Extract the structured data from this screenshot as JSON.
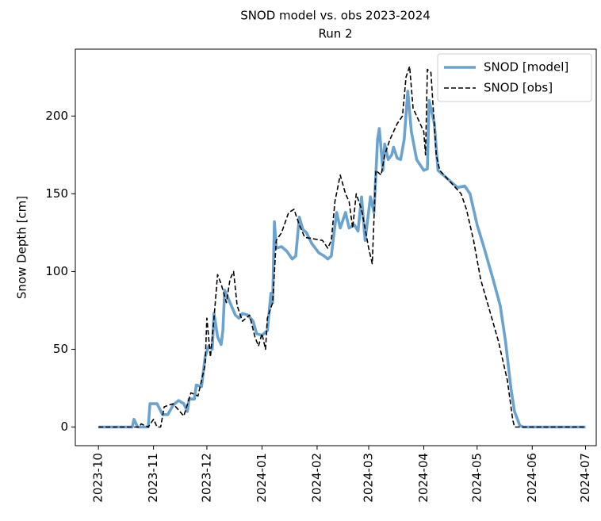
{
  "chart_data": {
    "type": "line",
    "title": "SNOD model vs. obs 2023-2024",
    "subtitle": "Run 2",
    "ylabel": "Snow Depth [cm]",
    "xlim": [
      "2023-09-18",
      "2024-07-07"
    ],
    "xticks": [
      "2023-10",
      "2023-11",
      "2023-12",
      "2024-01",
      "2024-02",
      "2024-03",
      "2024-04",
      "2024-05",
      "2024-06",
      "2024-07"
    ],
    "ylim": [
      -12,
      243
    ],
    "yticks": [
      0,
      50,
      100,
      150,
      200
    ],
    "grid": false,
    "legend": "upper right",
    "series": [
      {
        "name": "SNOD [model]",
        "color": "#6aa3d0",
        "dashed": false,
        "x": [
          "2023-10-01",
          "2023-10-20",
          "2023-10-21",
          "2023-10-23",
          "2023-10-29",
          "2023-10-30",
          "2023-11-03",
          "2023-11-06",
          "2023-11-09",
          "2023-11-12",
          "2023-11-15",
          "2023-11-18",
          "2023-11-20",
          "2023-11-21",
          "2023-11-24",
          "2023-11-25",
          "2023-11-28",
          "2023-11-30",
          "2023-12-02",
          "2023-12-04",
          "2023-12-05",
          "2023-12-07",
          "2023-12-09",
          "2023-12-10",
          "2023-12-11",
          "2023-12-14",
          "2023-12-17",
          "2023-12-19",
          "2023-12-21",
          "2023-12-24",
          "2023-12-27",
          "2023-12-29",
          "2024-01-01",
          "2024-01-04",
          "2024-01-06",
          "2024-01-07",
          "2024-01-08",
          "2024-01-09",
          "2024-01-12",
          "2024-01-15",
          "2024-01-18",
          "2024-01-20",
          "2024-01-22",
          "2024-01-24",
          "2024-01-26",
          "2024-01-29",
          "2024-02-02",
          "2024-02-05",
          "2024-02-07",
          "2024-02-09",
          "2024-02-10",
          "2024-02-12",
          "2024-02-14",
          "2024-02-17",
          "2024-02-19",
          "2024-02-22",
          "2024-02-24",
          "2024-02-26",
          "2024-02-28",
          "2024-03-02",
          "2024-03-04",
          "2024-03-06",
          "2024-03-07",
          "2024-03-09",
          "2024-03-10",
          "2024-03-12",
          "2024-03-14",
          "2024-03-15",
          "2024-03-17",
          "2024-03-19",
          "2024-03-21",
          "2024-03-23",
          "2024-03-25",
          "2024-03-28",
          "2024-04-01",
          "2024-04-03",
          "2024-04-04",
          "2024-04-07",
          "2024-04-09",
          "2024-04-12",
          "2024-04-16",
          "2024-04-20",
          "2024-04-24",
          "2024-04-27",
          "2024-05-01",
          "2024-05-05",
          "2024-05-10",
          "2024-05-14",
          "2024-05-17",
          "2024-05-20",
          "2024-05-22",
          "2024-05-25",
          "2024-05-27",
          "2024-07-01"
        ],
        "values": [
          0,
          0,
          5,
          0,
          0,
          15,
          15,
          8,
          8,
          14,
          17,
          15,
          10,
          18,
          18,
          27,
          26,
          45,
          52,
          50,
          73,
          58,
          53,
          62,
          88,
          80,
          72,
          70,
          73,
          72,
          68,
          60,
          59,
          62,
          86,
          80,
          132,
          115,
          116,
          113,
          108,
          110,
          135,
          127,
          125,
          118,
          112,
          110,
          108,
          110,
          120,
          138,
          128,
          138,
          128,
          130,
          126,
          148,
          120,
          148,
          138,
          185,
          192,
          165,
          182,
          172,
          175,
          180,
          173,
          172,
          185,
          216,
          190,
          172,
          165,
          166,
          210,
          195,
          165,
          162,
          158,
          154,
          155,
          150,
          130,
          115,
          95,
          78,
          55,
          25,
          10,
          1,
          0,
          0
        ]
      },
      {
        "name": "SNOD [obs]",
        "color": "#000000",
        "dashed": true,
        "x": [
          "2023-10-01",
          "2023-10-24",
          "2023-10-25",
          "2023-10-29",
          "2023-11-01",
          "2023-11-03",
          "2023-11-05",
          "2023-11-07",
          "2023-11-12",
          "2023-11-15",
          "2023-11-18",
          "2023-11-22",
          "2023-11-26",
          "2023-11-30",
          "2023-12-01",
          "2023-12-03",
          "2023-12-05",
          "2023-12-07",
          "2023-12-09",
          "2023-12-12",
          "2023-12-14",
          "2023-12-16",
          "2023-12-18",
          "2023-12-21",
          "2023-12-25",
          "2023-12-28",
          "2023-12-30",
          "2024-01-01",
          "2024-01-03",
          "2024-01-04",
          "2024-01-07",
          "2024-01-09",
          "2024-01-12",
          "2024-01-16",
          "2024-01-19",
          "2024-01-22",
          "2024-01-25",
          "2024-01-30",
          "2024-02-04",
          "2024-02-07",
          "2024-02-09",
          "2024-02-11",
          "2024-02-14",
          "2024-02-17",
          "2024-02-19",
          "2024-02-21",
          "2024-02-23",
          "2024-02-26",
          "2024-03-01",
          "2024-03-03",
          "2024-03-05",
          "2024-03-08",
          "2024-03-10",
          "2024-03-13",
          "2024-03-17",
          "2024-03-20",
          "2024-03-22",
          "2024-03-24",
          "2024-03-26",
          "2024-03-30",
          "2024-04-01",
          "2024-04-02",
          "2024-04-03",
          "2024-04-05",
          "2024-04-08",
          "2024-04-10",
          "2024-04-14",
          "2024-04-18",
          "2024-04-22",
          "2024-04-25",
          "2024-04-29",
          "2024-05-03",
          "2024-05-08",
          "2024-05-13",
          "2024-05-18",
          "2024-05-21",
          "2024-05-22",
          "2024-07-01"
        ],
        "values": [
          0,
          0,
          2,
          0,
          5,
          0,
          0,
          13,
          15,
          11,
          7,
          22,
          20,
          40,
          70,
          45,
          70,
          98,
          92,
          80,
          95,
          100,
          78,
          68,
          72,
          58,
          52,
          60,
          50,
          70,
          80,
          120,
          125,
          138,
          140,
          130,
          122,
          121,
          120,
          115,
          120,
          145,
          162,
          150,
          145,
          128,
          150,
          140,
          115,
          105,
          165,
          162,
          175,
          185,
          195,
          200,
          225,
          232,
          205,
          195,
          190,
          175,
          230,
          228,
          175,
          165,
          160,
          155,
          150,
          140,
          120,
          95,
          75,
          55,
          30,
          5,
          0,
          0
        ]
      }
    ]
  }
}
